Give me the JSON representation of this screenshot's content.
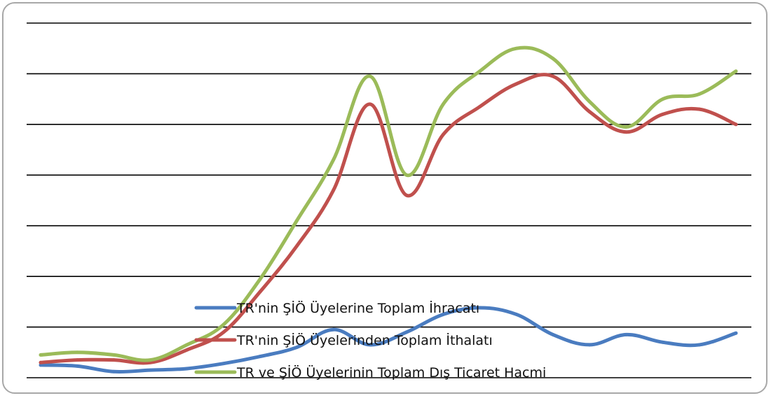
{
  "chart_data": {
    "type": "line",
    "title": "",
    "xlabel": "",
    "ylabel": "",
    "grid": true,
    "legend_placement": "bottom-center",
    "ylim": [
      0,
      7
    ],
    "gridlines": [
      0,
      1,
      2,
      3,
      4,
      5,
      6,
      7
    ],
    "x": [
      0,
      1,
      2,
      3,
      4,
      5,
      6,
      7,
      8,
      9,
      10,
      11,
      12,
      13,
      14,
      15,
      16,
      17,
      18,
      19
    ],
    "series": [
      {
        "name": "TR'nin ŞİÖ Üyelerine Toplam İhracatı",
        "color": "#4a7cc0",
        "values": [
          0.25,
          0.23,
          0.12,
          0.15,
          0.18,
          0.28,
          0.42,
          0.6,
          0.95,
          0.65,
          0.9,
          1.25,
          1.38,
          1.25,
          0.85,
          0.65,
          0.85,
          0.7,
          0.65,
          0.88
        ]
      },
      {
        "name": "TR'nin ŞİÖ Üyelerinden Toplam İthalatı",
        "color": "#c0504d",
        "values": [
          0.3,
          0.35,
          0.35,
          0.3,
          0.55,
          0.9,
          1.7,
          2.6,
          3.7,
          5.4,
          3.6,
          4.8,
          5.35,
          5.8,
          5.95,
          5.25,
          4.85,
          5.2,
          5.3,
          5.0
        ]
      },
      {
        "name": "TR ve ŞİÖ Üyelerinin Toplam Dış Ticaret Hacmi",
        "color": "#9bbb59",
        "values": [
          0.45,
          0.5,
          0.45,
          0.35,
          0.65,
          1.05,
          1.95,
          3.1,
          4.3,
          5.95,
          4.0,
          5.4,
          6.05,
          6.5,
          6.3,
          5.45,
          4.95,
          5.5,
          5.6,
          6.05
        ]
      }
    ]
  }
}
